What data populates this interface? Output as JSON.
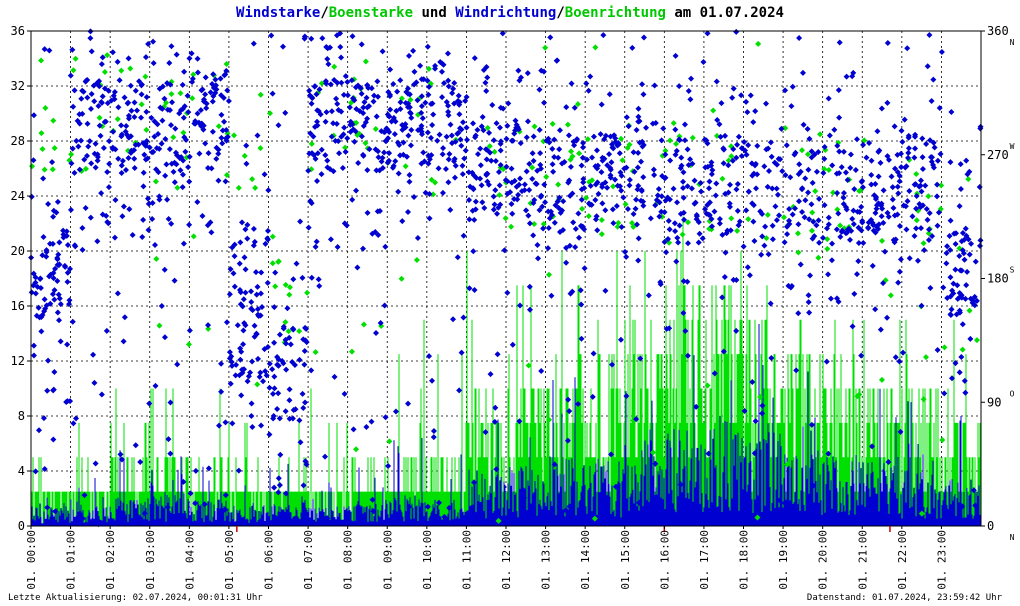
{
  "title": {
    "p1": "Windstarke",
    "p2": "/",
    "p3": "Boenstarke",
    "p4": " und ",
    "p5": "Windrichtung",
    "p6": "/",
    "p7": "Boenrichtung",
    "p8": " am 01.07.2024"
  },
  "footer": {
    "last_update": "Letzte Aktualisierung: 02.07.2024, 00:01:31 Uhr",
    "data_status": "Datenstand: 01.07.2024, 23:59:42 Uhr"
  },
  "colors": {
    "wind": "#0000d0",
    "gust": "#00e000",
    "grid": "#000000",
    "marker": "#cc0000"
  },
  "chart_data": {
    "type": "bar+scatter",
    "x_tick_labels": [
      "01. 00:00",
      "01. 01:00",
      "01. 02:00",
      "01. 03:00",
      "01. 04:00",
      "01. 05:00",
      "01. 06:00",
      "01. 07:00",
      "01. 08:00",
      "01. 09:00",
      "01. 10:00",
      "01. 11:00",
      "01. 12:00",
      "01. 13:00",
      "01. 14:00",
      "01. 15:00",
      "01. 16:00",
      "01. 17:00",
      "01. 18:00",
      "01. 19:00",
      "01. 20:00",
      "01. 21:00",
      "01. 22:00",
      "01. 23:00"
    ],
    "y_left_ticks": [
      0,
      4,
      8,
      12,
      16,
      20,
      24,
      28,
      32,
      36
    ],
    "y_left_range": [
      0,
      36
    ],
    "y_right_ticks": [
      {
        "value": 0,
        "label": "0",
        "compass": "N"
      },
      {
        "value": 90,
        "label": "90",
        "compass": "O"
      },
      {
        "value": 180,
        "label": "180",
        "compass": "S"
      },
      {
        "value": 270,
        "label": "270",
        "compass": "W"
      },
      {
        "value": 360,
        "label": "360",
        "compass": "N"
      }
    ],
    "y_right_range": [
      0,
      360
    ],
    "x_range_hours": [
      0,
      24
    ],
    "grid": true,
    "markers_hours": [
      5.2,
      16.0,
      21.7
    ],
    "series": [
      {
        "name": "Windstarke",
        "kind": "wind_speed_bars",
        "hourly_mean": [
          0.9,
          1.0,
          1.3,
          1.5,
          1.2,
          1.0,
          1.1,
          0.9,
          1.0,
          1.4,
          1.2,
          2.6,
          2.8,
          3.2,
          3.0,
          3.9,
          4.6,
          4.8,
          4.4,
          3.6,
          3.3,
          3.0,
          2.6,
          2.2
        ],
        "hourly_peak": [
          3,
          4,
          6,
          6,
          5,
          4,
          5,
          4,
          5,
          7,
          6,
          10,
          11,
          12,
          11,
          14,
          17,
          17,
          15,
          12,
          12,
          10,
          10,
          8
        ]
      },
      {
        "name": "Boenstarke",
        "kind": "gust_speed_bars",
        "hourly_mean": [
          2.0,
          2.5,
          3.0,
          3.3,
          2.9,
          2.5,
          2.6,
          2.4,
          2.8,
          3.5,
          3.2,
          7.0,
          7.5,
          8.0,
          8.0,
          10.0,
          13.0,
          12.5,
          11.0,
          8.5,
          8.0,
          7.0,
          6.5,
          5.0
        ],
        "hourly_peak": [
          8,
          10,
          10,
          11,
          10,
          9,
          10,
          10,
          12,
          14,
          15,
          20,
          20,
          20,
          21,
          22,
          33,
          22,
          21,
          17,
          17,
          16,
          18,
          18
        ]
      },
      {
        "name": "Windrichtung",
        "kind": "wind_direction_scatter",
        "hourly_dominant_deg": [
          180,
          290,
          290,
          290,
          295,
          140,
          110,
          290,
          290,
          290,
          290,
          260,
          260,
          250,
          250,
          260,
          240,
          250,
          250,
          240,
          240,
          240,
          250,
          180
        ]
      },
      {
        "name": "Boenrichtung",
        "kind": "gust_direction_scatter",
        "hourly_dominant_deg": [
          300,
          300,
          290,
          290,
          300,
          290,
          150,
          300,
          300,
          290,
          290,
          270,
          260,
          250,
          250,
          260,
          250,
          250,
          250,
          240,
          240,
          240,
          250,
          170
        ]
      }
    ]
  }
}
